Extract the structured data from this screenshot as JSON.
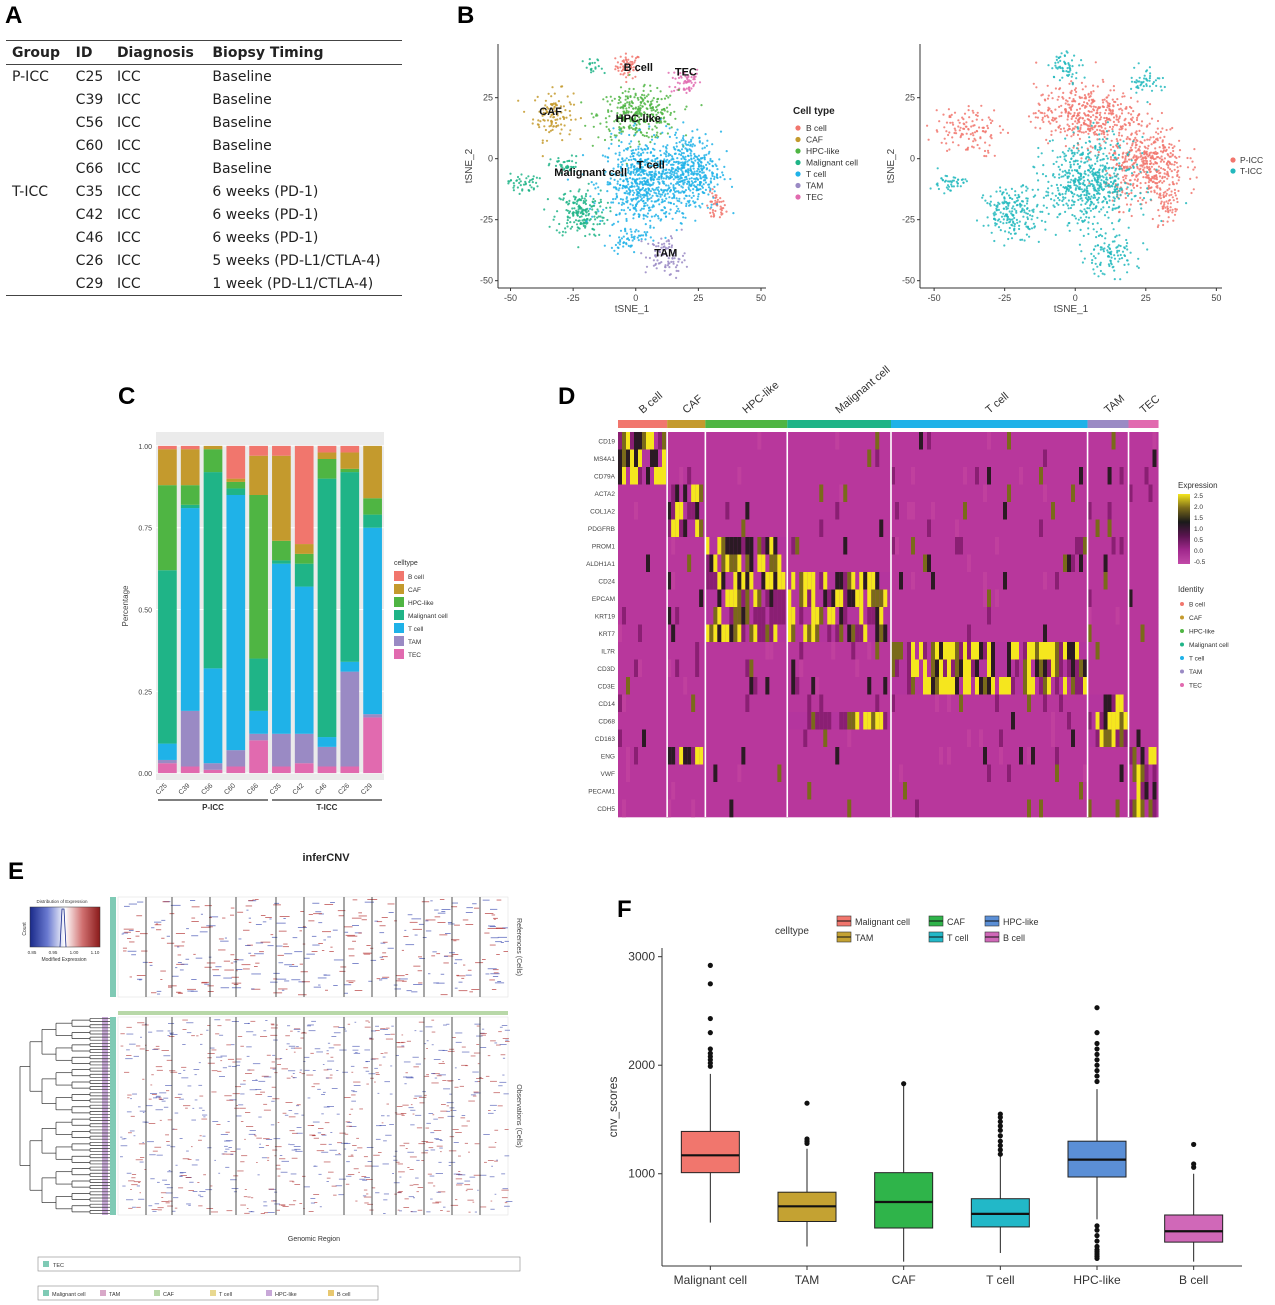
{
  "panel_letters": [
    "A",
    "B",
    "C",
    "D",
    "E",
    "F"
  ],
  "tableA": {
    "headers": [
      "Group",
      "ID",
      "Diagnosis",
      "Biopsy Timing"
    ],
    "rows": [
      [
        "P-ICC",
        "C25",
        "ICC",
        "Baseline"
      ],
      [
        "",
        "C39",
        "ICC",
        "Baseline"
      ],
      [
        "",
        "C56",
        "ICC",
        "Baseline"
      ],
      [
        "",
        "C60",
        "ICC",
        "Baseline"
      ],
      [
        "",
        "C66",
        "ICC",
        "Baseline"
      ],
      [
        "T-ICC",
        "C35",
        "ICC",
        "6 weeks (PD-1)"
      ],
      [
        "",
        "C42",
        "ICC",
        "6 weeks (PD-1)"
      ],
      [
        "",
        "C46",
        "ICC",
        "6 weeks (PD-1)"
      ],
      [
        "",
        "C26",
        "ICC",
        "5 weeks (PD-L1/CTLA-4)"
      ],
      [
        "",
        "C29",
        "ICC",
        "1 week (PD-L1/CTLA-4)"
      ]
    ]
  },
  "colors": {
    "B cell": "#f1766d",
    "CAF": "#c49a2d",
    "HPC-like": "#4fb543",
    "Malignant cell": "#1fb487",
    "T cell": "#1fb2e8",
    "TAM": "#9a8ac4",
    "TEC": "#e16aaf",
    "P-ICC": "#f1766d",
    "T-ICC": "#22b8bd"
  },
  "chart_data": [
    {
      "id": "B1",
      "type": "scatter",
      "xlabel": "tSNE_1",
      "ylabel": "tSNE_2",
      "xticks": [
        "-50",
        "-25",
        "0",
        "25",
        "50"
      ],
      "yticks": [
        "25",
        "0",
        "-25",
        "-50"
      ],
      "xlim": [
        -55,
        52
      ],
      "ylim": [
        -53,
        47
      ],
      "legend_title": "Cell type",
      "legend": [
        "B cell",
        "CAF",
        "HPC-like",
        "Malignant cell",
        "T cell",
        "TAM",
        "TEC"
      ],
      "labels": [
        {
          "text": "B cell",
          "x": 1,
          "y": 36
        },
        {
          "text": "TEC",
          "x": 20,
          "y": 34
        },
        {
          "text": "CAF",
          "x": -34,
          "y": 18
        },
        {
          "text": "HPC-like",
          "x": 1,
          "y": 15
        },
        {
          "text": "T cell",
          "x": 6,
          "y": -4
        },
        {
          "text": "Malignant cell",
          "x": -18,
          "y": -7
        },
        {
          "text": "TAM",
          "x": 12,
          "y": -40
        }
      ],
      "clusters": [
        {
          "type": "B cell",
          "cx": -3,
          "cy": 38,
          "sx": 2.5,
          "sy": 2.5,
          "n": 60
        },
        {
          "type": "B cell",
          "cx": 32,
          "cy": -20,
          "sx": 2,
          "sy": 3,
          "n": 45
        },
        {
          "type": "TEC",
          "cx": 20,
          "cy": 32,
          "sx": 3,
          "sy": 3,
          "n": 60
        },
        {
          "type": "CAF",
          "cx": -33,
          "cy": 18,
          "sx": 4,
          "sy": 5,
          "n": 110
        },
        {
          "type": "HPC-like",
          "cx": 1,
          "cy": 18,
          "sx": 8,
          "sy": 5,
          "n": 320
        },
        {
          "type": "Malignant cell",
          "cx": -22,
          "cy": -22,
          "sx": 5,
          "sy": 5,
          "n": 190
        },
        {
          "type": "Malignant cell",
          "cx": -45,
          "cy": -10,
          "sx": 3,
          "sy": 2,
          "n": 45
        },
        {
          "type": "Malignant cell",
          "cx": -28,
          "cy": -3,
          "sx": 3,
          "sy": 2,
          "n": 40
        },
        {
          "type": "Malignant cell",
          "cx": -17,
          "cy": 37,
          "sx": 2,
          "sy": 2,
          "n": 20
        },
        {
          "type": "T cell",
          "cx": 3,
          "cy": -10,
          "sx": 8,
          "sy": 9,
          "n": 650
        },
        {
          "type": "T cell",
          "cx": 22,
          "cy": -5,
          "sx": 6,
          "sy": 8,
          "n": 400
        },
        {
          "type": "T cell",
          "cx": -4,
          "cy": -33,
          "sx": 3,
          "sy": 2,
          "n": 40
        },
        {
          "type": "TAM",
          "cx": 12,
          "cy": -40,
          "sx": 4,
          "sy": 4,
          "n": 90
        }
      ]
    },
    {
      "id": "B2",
      "type": "scatter",
      "xlabel": "tSNE_1",
      "ylabel": "tSNE_2",
      "xticks": [
        "-50",
        "-25",
        "0",
        "25",
        "50"
      ],
      "yticks": [
        "25",
        "0",
        "-25",
        "-50"
      ],
      "xlim": [
        -55,
        52
      ],
      "ylim": [
        -53,
        47
      ],
      "legend": [
        "P-ICC",
        "T-ICC"
      ],
      "clusters": [
        {
          "type": "P-ICC",
          "cx": 4,
          "cy": 18,
          "sx": 9,
          "sy": 6,
          "n": 420
        },
        {
          "type": "P-ICC",
          "cx": 25,
          "cy": -3,
          "sx": 7,
          "sy": 8,
          "n": 480
        },
        {
          "type": "T-ICC",
          "cx": 5,
          "cy": -10,
          "sx": 8,
          "sy": 9,
          "n": 600
        },
        {
          "type": "T-ICC",
          "cx": -22,
          "cy": -22,
          "sx": 5,
          "sy": 5,
          "n": 200
        },
        {
          "type": "T-ICC",
          "cx": -3,
          "cy": 38,
          "sx": 3,
          "sy": 3,
          "n": 60
        },
        {
          "type": "T-ICC",
          "cx": 25,
          "cy": 32,
          "sx": 3,
          "sy": 3,
          "n": 50
        },
        {
          "type": "P-ICC",
          "cx": -38,
          "cy": 12,
          "sx": 6,
          "sy": 5,
          "n": 120
        },
        {
          "type": "T-ICC",
          "cx": -45,
          "cy": -10,
          "sx": 3,
          "sy": 2,
          "n": 45
        },
        {
          "type": "T-ICC",
          "cx": 12,
          "cy": -40,
          "sx": 5,
          "sy": 4,
          "n": 100
        },
        {
          "type": "P-ICC",
          "cx": 32,
          "cy": -20,
          "sx": 2,
          "sy": 3,
          "n": 45
        }
      ]
    },
    {
      "id": "C",
      "type": "bar",
      "stacked": true,
      "ylabel": "Percentage",
      "categories": [
        "C25",
        "C39",
        "C56",
        "C60",
        "C66",
        "C35",
        "C42",
        "C46",
        "C26",
        "C29"
      ],
      "groups": [
        {
          "label": "P-ICC",
          "from": 0,
          "to": 4
        },
        {
          "label": "T-ICC",
          "from": 5,
          "to": 9
        }
      ],
      "yticks": [
        "0.00",
        "0.25",
        "0.50",
        "0.75",
        "1.00"
      ],
      "ylim": [
        0,
        1
      ],
      "legend_title": "celltype",
      "legend": [
        "B cell",
        "CAF",
        "HPC-like",
        "Malignant cell",
        "T cell",
        "TAM",
        "TEC"
      ],
      "series": [
        {
          "name": "TEC",
          "values": [
            0.03,
            0.02,
            0.01,
            0.02,
            0.1,
            0.02,
            0.03,
            0.02,
            0.02,
            0.17
          ]
        },
        {
          "name": "TAM",
          "values": [
            0.01,
            0.17,
            0.02,
            0.05,
            0.02,
            0.1,
            0.09,
            0.06,
            0.29,
            0.01
          ]
        },
        {
          "name": "T cell",
          "values": [
            0.05,
            0.62,
            0.29,
            0.78,
            0.07,
            0.52,
            0.45,
            0.03,
            0.03,
            0.57
          ]
        },
        {
          "name": "Malignant cell",
          "values": [
            0.53,
            0.01,
            0.6,
            0.02,
            0.16,
            0.01,
            0.07,
            0.79,
            0.58,
            0.04
          ]
        },
        {
          "name": "HPC-like",
          "values": [
            0.26,
            0.06,
            0.07,
            0.02,
            0.5,
            0.06,
            0.03,
            0.06,
            0.01,
            0.05
          ]
        },
        {
          "name": "CAF",
          "values": [
            0.11,
            0.11,
            0.01,
            0.01,
            0.12,
            0.26,
            0.03,
            0.02,
            0.05,
            0.16
          ]
        },
        {
          "name": "B cell",
          "values": [
            0.01,
            0.01,
            0.0,
            0.1,
            0.03,
            0.03,
            0.3,
            0.02,
            0.02,
            0.0
          ]
        }
      ]
    },
    {
      "id": "D",
      "type": "heatmap",
      "genes": [
        "CD19",
        "MS4A1",
        "CD79A",
        "ACTA2",
        "COL1A2",
        "PDGFRB",
        "PROM1",
        "ALDH1A1",
        "CD24",
        "EPCAM",
        "KRT19",
        "KRT7",
        "IL7R",
        "CD3D",
        "CD3E",
        "CD14",
        "CD68",
        "CD163",
        "ENG",
        "VWF",
        "PECAM1",
        "CDH5"
      ],
      "groups": [
        {
          "name": "B cell",
          "width": 0.09
        },
        {
          "name": "CAF",
          "width": 0.07
        },
        {
          "name": "HPC-like",
          "width": 0.15
        },
        {
          "name": "Malignant cell",
          "width": 0.19
        },
        {
          "name": "T cell",
          "width": 0.36
        },
        {
          "name": "TAM",
          "width": 0.075
        },
        {
          "name": "TEC",
          "width": 0.055
        }
      ],
      "high": [
        [
          0,
          1,
          2
        ],
        [
          3,
          4,
          5,
          18
        ],
        [
          6,
          7,
          8,
          9,
          10,
          11
        ],
        [
          8,
          9,
          10,
          11,
          16
        ],
        [
          12,
          13,
          14
        ],
        [
          15,
          16,
          17
        ],
        [
          18,
          19,
          20,
          21
        ]
      ],
      "legend_title": "Expression",
      "scale_ticks": [
        "2.5",
        "2.0",
        "1.5",
        "1.0",
        "0.5",
        "0.0",
        "-0.5"
      ],
      "identity_title": "Identity",
      "identity": [
        "B cell",
        "CAF",
        "HPC-like",
        "Malignant cell",
        "T cell",
        "TAM",
        "TEC"
      ]
    },
    {
      "id": "E",
      "type": "heatmap",
      "title": "inferCNV",
      "key_title": "Distribution of Expression",
      "key_xlabel": "Modified Expression",
      "key_ylabel": "Count",
      "key_ticks": [
        "0.85",
        "0.95",
        "1.00",
        "1.10"
      ],
      "ref_label": "References (Cells)",
      "obs_label": "Observations (Cells)",
      "xlabel": "Genomic Region",
      "legend_ref": [
        "TEC"
      ],
      "legend_obs": [
        "Malignant cell",
        "TAM",
        "CAF",
        "T cell",
        "HPC-like",
        "B cell"
      ]
    },
    {
      "id": "F",
      "type": "box",
      "ylabel": "cnv_scores",
      "legend_title": "celltype",
      "legend": [
        "Malignant cell",
        "CAF",
        "HPC-like",
        "TAM",
        "T cell",
        "B cell"
      ],
      "categories": [
        "Malignant cell",
        "TAM",
        "CAF",
        "T cell",
        "HPC-like",
        "B cell"
      ],
      "colors": [
        "#f1766d",
        "#c4a232",
        "#2fb44a",
        "#22b8c8",
        "#5b8fd6",
        "#d068b8"
      ],
      "yticks": [
        1000,
        2000,
        3000
      ],
      "ylim": [
        150,
        3080
      ],
      "boxes": [
        {
          "min": 550,
          "q1": 1010,
          "median": 1170,
          "q3": 1390,
          "max": 1920,
          "outliers": [
            1990,
            2020,
            2050,
            2080,
            2110,
            2150,
            2300,
            2430,
            2750,
            2920
          ]
        },
        {
          "min": 330,
          "q1": 560,
          "median": 700,
          "q3": 830,
          "max": 1230,
          "outliers": [
            1280,
            1300,
            1320,
            1650
          ]
        },
        {
          "min": 190,
          "q1": 500,
          "median": 740,
          "q3": 1010,
          "max": 1820,
          "outliers": [
            1830
          ]
        },
        {
          "min": 270,
          "q1": 510,
          "median": 630,
          "q3": 770,
          "max": 1160,
          "outliers": [
            1180,
            1220,
            1260,
            1300,
            1350,
            1400,
            1440,
            1480,
            1520,
            1550
          ]
        },
        {
          "min": 580,
          "q1": 970,
          "median": 1130,
          "q3": 1300,
          "max": 1780,
          "outliers": [
            220,
            240,
            260,
            280,
            300,
            330,
            380,
            430,
            480,
            520,
            1850,
            1900,
            1950,
            2000,
            2050,
            2100,
            2150,
            2200,
            2300,
            2530
          ]
        },
        {
          "min": 190,
          "q1": 370,
          "median": 470,
          "q3": 620,
          "max": 1000,
          "outliers": [
            1060,
            1090,
            1270
          ]
        }
      ]
    }
  ]
}
